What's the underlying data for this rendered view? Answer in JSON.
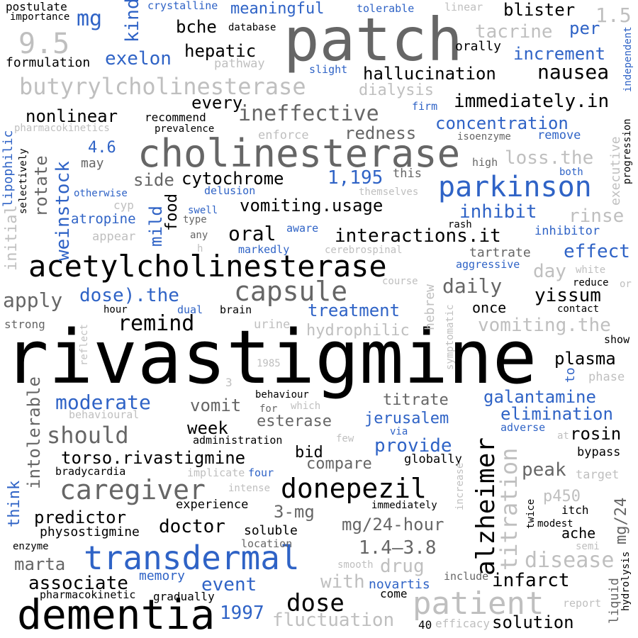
{
  "colors": {
    "black": "#000000",
    "dark_gray": "#666666",
    "light_gray": "#bfbfbf",
    "blue": "#2f63c6"
  },
  "words": {
    "rivastigmine": "rivastigmine",
    "patch": "patch",
    "dementia": "dementia",
    "cholinesterase": "cholinesterase",
    "acetylcholinesterase": "acetylcholinesterase",
    "transdermal": "transdermal",
    "parkinson": "parkinson",
    "butyrylcholinesterase": "butyrylcholinesterase",
    "patient": "patient",
    "capsule": "capsule",
    "caregiver": "caregiver",
    "donepezil": "donepezil",
    "alzheimer": "alzheimer",
    "titration": "titration",
    "disease": "disease",
    "n9_5": "9.5",
    "mg": "mg",
    "kind": "kind",
    "exelon": "exelon",
    "hepatic": "hepatic",
    "bche": "bche",
    "blister": "blister",
    "n1_5": "1.5",
    "per": "per",
    "tacrine": "tacrine",
    "increment": "increment",
    "orally": "orally",
    "meaningful": "meaningful",
    "crystalline": "crystalline",
    "tolerable": "tolerable",
    "linear": "linear",
    "postulate": "postulate",
    "importance": "importance",
    "database": "database",
    "formulation": "formulation",
    "pathway": "pathway",
    "slight": "slight",
    "hallucination": "hallucination",
    "nausea": "nausea",
    "independent": "independent",
    "dialysis": "dialysis",
    "every": "every",
    "immediately_in": "immediately.in",
    "ineffective": "ineffective",
    "firm": "firm",
    "nonlinear": "nonlinear",
    "recommend": "recommend",
    "prevalence": "prevalence",
    "pharmacokinetics": "pharmacokinetics",
    "lipophilic": "lipophilic",
    "concentration": "concentration",
    "redness": "redness",
    "enforce": "enforce",
    "isoenzyme": "isoenzyme",
    "remove": "remove",
    "progression": "progression",
    "weinstock": "weinstock",
    "rotate": "rotate",
    "selectively": "selectively",
    "n4_6": "4.6",
    "may": "may",
    "loss_the": "loss.the",
    "high": "high",
    "both": "both",
    "cytochrome": "cytochrome",
    "n1195": "1,195",
    "this": "this",
    "initial": "initial",
    "side": "side",
    "food": "food",
    "mild": "mild",
    "otherwise": "otherwise",
    "delusion": "delusion",
    "themselves": "themselves",
    "executive": "executive",
    "cyp": "cyp",
    "swell": "swell",
    "vomiting_usage": "vomiting.usage",
    "inhibit": "inhibit",
    "rinse": "rinse",
    "atropine": "atropine",
    "type": "type",
    "appear": "appear",
    "rash": "rash",
    "aware": "aware",
    "oral": "oral",
    "interactions_it": "interactions.it",
    "inhibitor": "inhibitor",
    "any": "any",
    "h": "h",
    "markedly": "markedly",
    "cerebrospinal": "cerebrospinal",
    "tartrate": "tartrate",
    "effect": "effect",
    "aggressive": "aggressive",
    "day": "day",
    "white": "white",
    "hebrew": "hebrew",
    "daily": "daily",
    "course": "course",
    "reduce": "reduce",
    "or": "or",
    "apply": "apply",
    "dose_the": "dose).the",
    "yissum": "yissum",
    "hour": "hour",
    "dual": "dual",
    "brain": "brain",
    "treatment": "treatment",
    "once": "once",
    "contact": "contact",
    "remind": "remind",
    "strong": "strong",
    "urine": "urine",
    "hydrophilic": "hydrophilic",
    "vomiting_the": "vomiting.the",
    "symptomatic": "symptomatic",
    "show": "show",
    "reflect": "reflect",
    "intolerable": "intolerable",
    "n1985": "1985",
    "plasma": "plasma",
    "to": "to",
    "phase": "phase",
    "n3": "3",
    "galantamine": "galantamine",
    "moderate": "moderate",
    "vomit": "vomit",
    "behaviour": "behaviour",
    "titrate": "titrate",
    "for": "for",
    "which": "which",
    "behavioural": "behavioural",
    "elimination": "elimination",
    "jerusalem": "jerusalem",
    "esterase": "esterase",
    "week": "week",
    "should": "should",
    "adverse": "adverse",
    "at": "at",
    "rosin": "rosin",
    "few": "few",
    "via": "via",
    "administration": "administration",
    "provide": "provide",
    "bid": "bid",
    "torso_rivastigmine": "torso.rivastigmine",
    "compare": "compare",
    "globally": "globally",
    "bypass": "bypass",
    "think": "think",
    "bradycardia": "bradycardia",
    "implicate": "implicate",
    "four": "four",
    "peak": "peak",
    "target": "target",
    "intense": "intense",
    "mg_24": "mg/24",
    "increase": "increase",
    "p450": "p450",
    "n3mg": "3-mg",
    "predictor": "predictor",
    "experience": "experience",
    "immediately": "immediately",
    "itch": "itch",
    "twice": "twice",
    "doctor": "doctor",
    "modest": "modest",
    "mg_24_hour": "mg/24-hour",
    "ache": "ache",
    "physostigmine": "physostigmine",
    "soluble": "soluble",
    "semi": "semi",
    "enzyme": "enzyme",
    "location": "location",
    "marta": "marta",
    "n1_4_3_8": "1.4–3.8",
    "hydrolysis": "hydrolysis",
    "associate": "associate",
    "smooth": "smooth",
    "drug": "drug",
    "memory": "memory",
    "with": "with",
    "infarct": "infarct",
    "liquid": "liquid",
    "event": "event",
    "include": "include",
    "novartis": "novartis",
    "pharmacokinetic": "pharmacokinetic",
    "gradually": "gradually",
    "come": "come",
    "report": "report",
    "dose": "dose",
    "n1997": "1997",
    "fluctuation": "fluctuation",
    "n40": "40",
    "efficacy": "efficacy",
    "solution": "solution"
  }
}
